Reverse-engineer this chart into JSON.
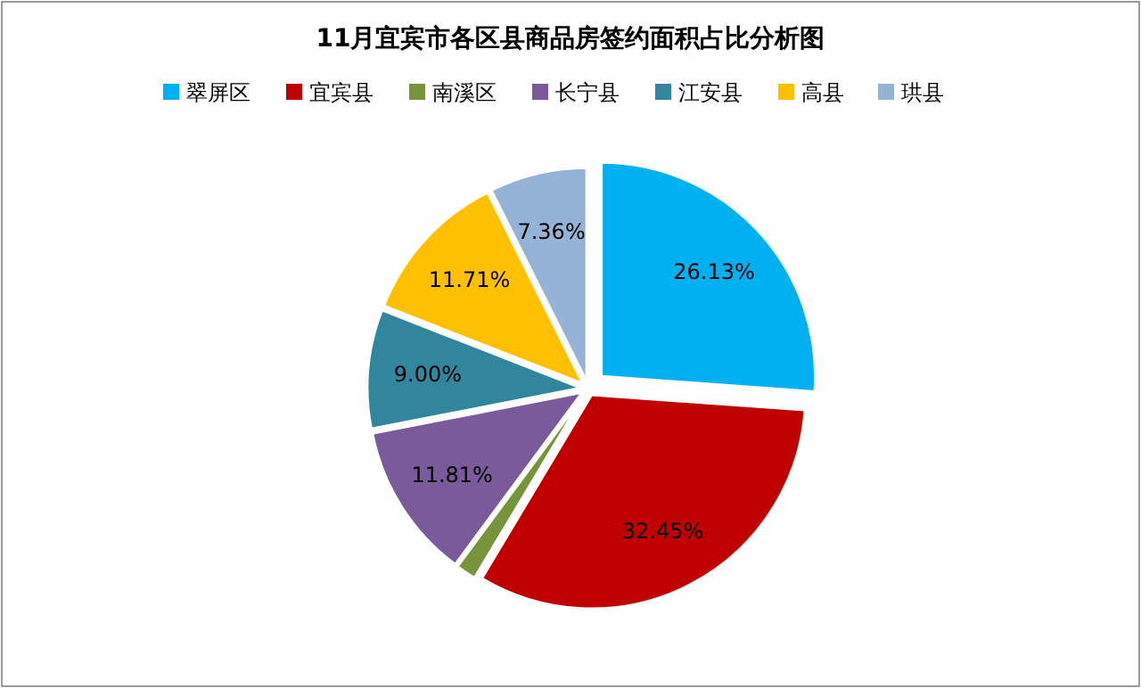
{
  "chart_data": {
    "type": "pie",
    "title": "11月宜宾市各区县商品房签约面积占比分析图",
    "categories": [
      "翠屏区",
      "宜宾县",
      "南溪区",
      "长宁县",
      "江安县",
      "高县",
      "珙县"
    ],
    "values": [
      26.13,
      32.45,
      1.54,
      11.81,
      9.0,
      11.71,
      7.36
    ],
    "colors": [
      "#00b0f0",
      "#c00000",
      "#77933c",
      "#7a5a9a",
      "#31859c",
      "#ffc000",
      "#95b3d7"
    ],
    "value_labels": [
      "26.13%",
      "32.45%",
      null,
      "11.81%",
      "9.00%",
      "11.71%",
      "7.36%"
    ],
    "legend": "top"
  }
}
